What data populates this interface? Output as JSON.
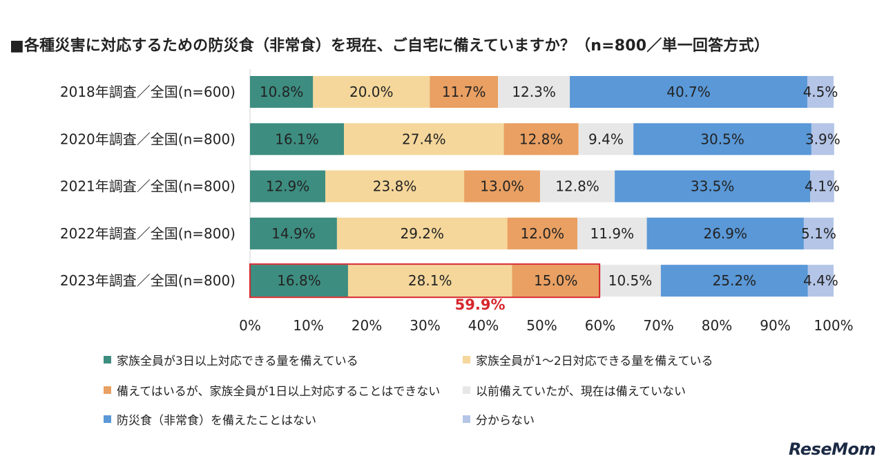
{
  "title": "■各種災害に対応するための防災食（非常食）を現在、ご自宅に備えていますか？（n=800／単一回答方式）",
  "brand": "ReseMom",
  "chart_data": {
    "type": "bar",
    "orientation": "horizontal",
    "stacked": true,
    "categories": [
      "2018年調査／全国(n=600)",
      "2020年調査／全国(n=800)",
      "2021年調査／全国(n=800)",
      "2022年調査／全国(n=800)",
      "2023年調査／全国(n=800)"
    ],
    "series": [
      {
        "name": "家族全員が3日以上対応できる量を備えている",
        "color": "#3d8d80",
        "values": [
          10.8,
          16.1,
          12.9,
          14.9,
          16.8
        ]
      },
      {
        "name": "家族全員が1～2日対応できる量を備えている",
        "color": "#f5d79b",
        "values": [
          20.0,
          27.4,
          23.8,
          29.2,
          28.1
        ]
      },
      {
        "name": "備えてはいるが、家族全員が1日以上対応することはできない",
        "color": "#e9a062",
        "values": [
          11.7,
          12.8,
          13.0,
          12.0,
          15.0
        ]
      },
      {
        "name": "以前備えていたが、現在は備えていない",
        "color": "#e7e7e7",
        "values": [
          12.3,
          9.4,
          12.8,
          11.9,
          10.5
        ]
      },
      {
        "name": "防災食（非常食）を備えたことはない",
        "color": "#5a98d7",
        "values": [
          40.7,
          30.5,
          33.5,
          26.9,
          25.2
        ]
      },
      {
        "name": "分からない",
        "color": "#b4c5e7",
        "values": [
          4.5,
          3.9,
          4.1,
          5.1,
          4.4
        ]
      }
    ],
    "value_labels": [
      [
        "10.8%",
        "20.0%",
        "11.7%",
        "12.3%",
        "40.7%",
        "4.5%"
      ],
      [
        "16.1%",
        "27.4%",
        "12.8%",
        "9.4%",
        "30.5%",
        "3.9%"
      ],
      [
        "12.9%",
        "23.8%",
        "13.0%",
        "12.8%",
        "33.5%",
        "4.1%"
      ],
      [
        "14.9%",
        "29.2%",
        "12.0%",
        "11.9%",
        "26.9%",
        "5.1%"
      ],
      [
        "16.8%",
        "28.1%",
        "15.0%",
        "10.5%",
        "25.2%",
        "4.4%"
      ]
    ],
    "xlim": [
      0,
      100
    ],
    "xticks": [
      "0%",
      "10%",
      "20%",
      "30%",
      "40%",
      "50%",
      "60%",
      "70%",
      "80%",
      "90%",
      "100%"
    ],
    "highlight": {
      "category_index": 4,
      "series_count": 3,
      "label": "59.9%",
      "color": "#d6262b"
    },
    "legend_position": "bottom"
  }
}
